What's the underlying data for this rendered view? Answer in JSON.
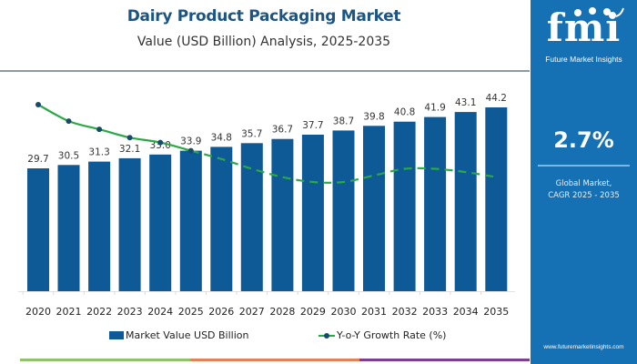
{
  "header": {
    "title": "Dairy Product Packaging Market",
    "subtitle": "Value (USD Billion) Analysis, 2025-2035"
  },
  "side_panel": {
    "logo_text": "fmi",
    "logo_subtitle": "Future Market Insights",
    "cagr_value": "2.7%",
    "cagr_caption_line1": "Global Market,",
    "cagr_caption_line2": "CAGR 2025 - 2035",
    "website": "www.futuremarketinsights.com",
    "background_color": "#1670b4"
  },
  "colorbar": {
    "segments": [
      "#8fc26b",
      "#e08458",
      "#7f3f8f"
    ]
  },
  "chart_data": {
    "type": "bar",
    "title": "Dairy Product Packaging Market",
    "subtitle": "Value (USD Billion) Analysis, 2025-2035",
    "xlabel": "",
    "ylabel": "",
    "categories": [
      "2020",
      "2021",
      "2022",
      "2023",
      "2024",
      "2025",
      "2026",
      "2027",
      "2028",
      "2029",
      "2030",
      "2031",
      "2032",
      "2033",
      "2034",
      "2035"
    ],
    "series": [
      {
        "name": "Market Value USD Billion",
        "type": "bar",
        "color": "#0d5a96",
        "values": [
          29.7,
          30.5,
          31.3,
          32.1,
          33.0,
          33.9,
          34.8,
          35.7,
          36.7,
          37.7,
          38.7,
          39.8,
          40.8,
          41.9,
          43.1,
          44.2
        ],
        "labels": [
          "29.7",
          "30.5",
          "31.3",
          "32.1",
          "33.0",
          "33.9",
          "34.8",
          "35.7",
          "36.7",
          "37.7",
          "38.7",
          "39.8",
          "40.8",
          "41.9",
          "43.1",
          "44.2"
        ]
      },
      {
        "name": "Y-o-Y Growth Rate (%)",
        "type": "line",
        "color": "#2ca846",
        "marker_color": "#174a6b",
        "solid_until_index": 5,
        "dashed_after_index": 5,
        "values": [
          3.4,
          2.9,
          2.65,
          2.4,
          2.25,
          2.0,
          1.75,
          1.45,
          1.2,
          1.05,
          1.05,
          1.25,
          1.45,
          1.45,
          1.35,
          1.2
        ]
      }
    ],
    "ylim": [
      0,
      46
    ],
    "growth_ylim": [
      0,
      4.5
    ],
    "grid": false,
    "legend": "bottom"
  }
}
